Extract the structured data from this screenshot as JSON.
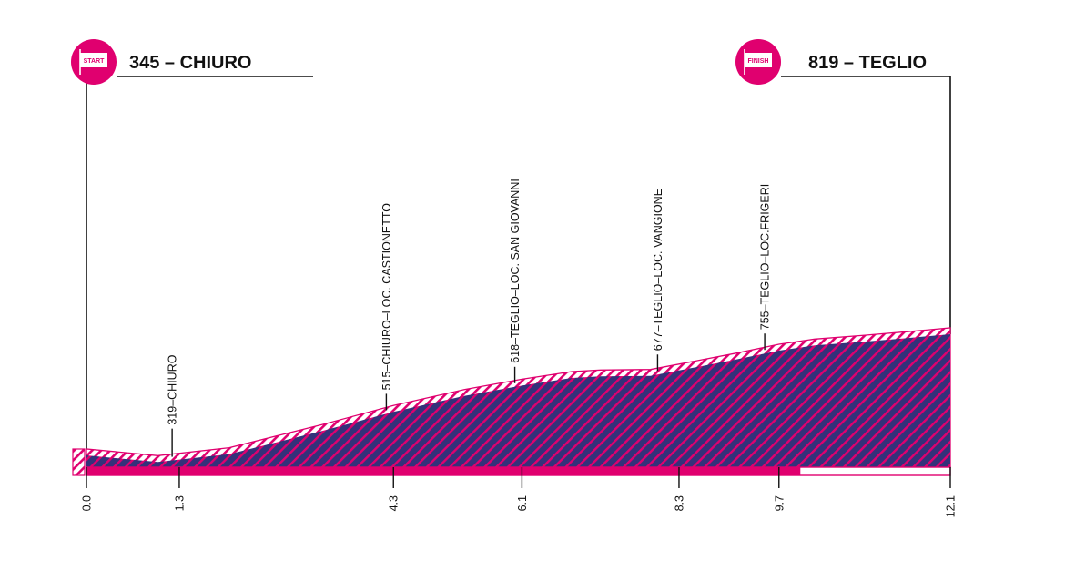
{
  "header": {
    "start_title": "345 – CHIURO",
    "start_badge": "START",
    "finish_title": "819 – TEGLIO",
    "finish_badge": "FINISH"
  },
  "colors": {
    "accent": "#e0006f",
    "profile_fill": "#34317a",
    "hatch_light": "#f2c3dc",
    "ink": "#111111",
    "background": "#ffffff"
  },
  "chart_data": {
    "type": "area",
    "title": "",
    "xlabel": "",
    "ylabel": "",
    "xlim": [
      0,
      12.1
    ],
    "ylim": [
      0,
      819
    ],
    "x": [
      0.0,
      1.0,
      2.0,
      3.3,
      4.3,
      5.3,
      6.1,
      6.8,
      7.2,
      7.9,
      8.3,
      9.1,
      9.7,
      10.2,
      10.9,
      11.5,
      12.1
    ],
    "elevation": [
      345,
      319,
      350,
      440,
      515,
      578,
      618,
      648,
      654,
      656,
      677,
      720,
      755,
      775,
      790,
      804,
      819
    ],
    "ticks": [
      {
        "x": 0.0,
        "label": "0.0"
      },
      {
        "x": 1.3,
        "label": "1.3"
      },
      {
        "x": 4.3,
        "label": "4.3"
      },
      {
        "x": 6.1,
        "label": "6.1"
      },
      {
        "x": 8.3,
        "label": "8.3"
      },
      {
        "x": 9.7,
        "label": "9.7"
      },
      {
        "x": 12.1,
        "label": "12.1"
      }
    ],
    "waypoints": [
      {
        "x": 1.2,
        "label": "319–CHIURO"
      },
      {
        "x": 4.2,
        "label": "515–CHIURO–LOC. CASTIONETTO"
      },
      {
        "x": 6.0,
        "label": "618–TEGLIO–LOC. SAN GIOVANNI"
      },
      {
        "x": 8.0,
        "label": "677–TEGLIO–LOC. VANGIONE"
      },
      {
        "x": 9.5,
        "label": "755–TEGLIO–LOC.FRIGERI"
      }
    ],
    "progress_bar": {
      "filled_to_km": 10.0,
      "total_km": 12.1
    }
  }
}
